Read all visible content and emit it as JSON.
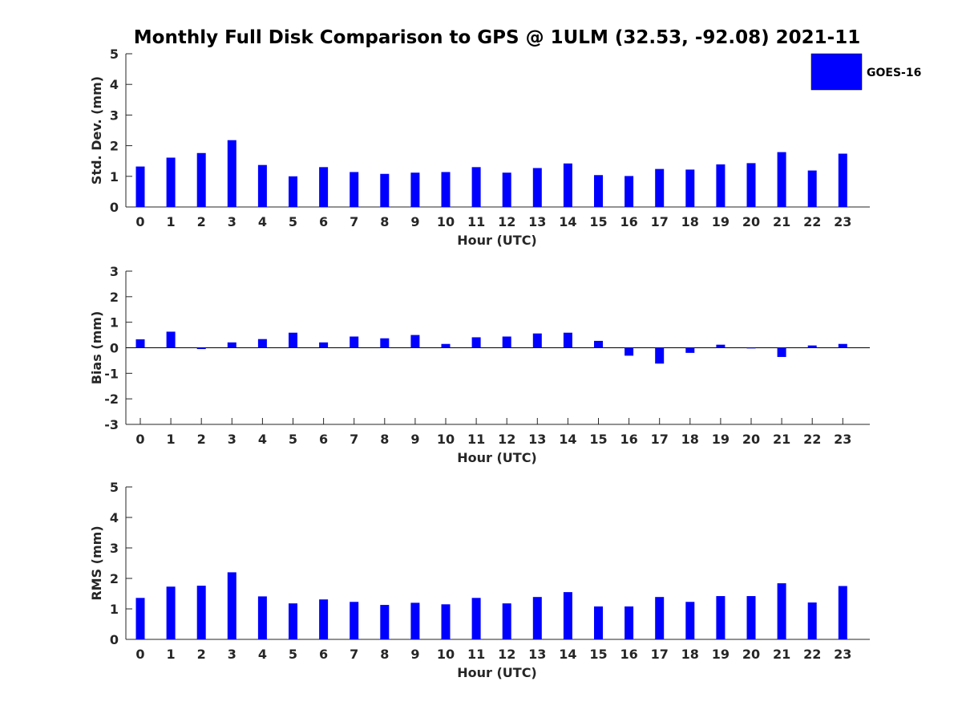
{
  "title": "Monthly Full Disk Comparison to GPS @ 1ULM (32.53, -92.08) 2021-11",
  "colors": {
    "bar": "#0000ff",
    "axis": "#262626"
  },
  "legend": {
    "label": "GOES-16",
    "placement": "top-right"
  },
  "chart_data": [
    {
      "type": "bar",
      "xlabel": "Hour (UTC)",
      "ylabel": "Std. Dev. (mm)",
      "ylim": [
        0,
        5
      ],
      "yticks": [
        0,
        1,
        2,
        3,
        4,
        5
      ],
      "categories": [
        "0",
        "1",
        "2",
        "3",
        "4",
        "5",
        "6",
        "7",
        "8",
        "9",
        "10",
        "11",
        "12",
        "13",
        "14",
        "15",
        "16",
        "17",
        "18",
        "19",
        "20",
        "21",
        "22",
        "23"
      ],
      "series": [
        {
          "name": "GOES-16",
          "values": [
            1.32,
            1.61,
            1.76,
            2.18,
            1.37,
            1.0,
            1.3,
            1.14,
            1.08,
            1.12,
            1.14,
            1.3,
            1.12,
            1.27,
            1.42,
            1.04,
            1.01,
            1.24,
            1.22,
            1.39,
            1.43,
            1.79,
            1.19,
            1.74
          ]
        }
      ]
    },
    {
      "type": "bar",
      "xlabel": "Hour (UTC)",
      "ylabel": "Bias (mm)",
      "ylim": [
        -3,
        3
      ],
      "yticks": [
        -3,
        -2,
        -1,
        0,
        1,
        2,
        3
      ],
      "categories": [
        "0",
        "1",
        "2",
        "3",
        "4",
        "5",
        "6",
        "7",
        "8",
        "9",
        "10",
        "11",
        "12",
        "13",
        "14",
        "15",
        "16",
        "17",
        "18",
        "19",
        "20",
        "21",
        "22",
        "23"
      ],
      "series": [
        {
          "name": "GOES-16",
          "values": [
            0.33,
            0.63,
            -0.05,
            0.21,
            0.34,
            0.59,
            0.21,
            0.44,
            0.37,
            0.5,
            0.15,
            0.41,
            0.44,
            0.56,
            0.59,
            0.27,
            -0.31,
            -0.62,
            -0.2,
            0.12,
            -0.02,
            -0.36,
            0.09,
            0.15
          ]
        }
      ]
    },
    {
      "type": "bar",
      "xlabel": "Hour (UTC)",
      "ylabel": "RMS (mm)",
      "ylim": [
        0,
        5
      ],
      "yticks": [
        0,
        1,
        2,
        3,
        4,
        5
      ],
      "categories": [
        "0",
        "1",
        "2",
        "3",
        "4",
        "5",
        "6",
        "7",
        "8",
        "9",
        "10",
        "11",
        "12",
        "13",
        "14",
        "15",
        "16",
        "17",
        "18",
        "19",
        "20",
        "21",
        "22",
        "23"
      ],
      "series": [
        {
          "name": "GOES-16",
          "values": [
            1.36,
            1.73,
            1.76,
            2.2,
            1.41,
            1.18,
            1.31,
            1.23,
            1.13,
            1.2,
            1.15,
            1.36,
            1.18,
            1.39,
            1.55,
            1.08,
            1.08,
            1.39,
            1.23,
            1.42,
            1.42,
            1.84,
            1.21,
            1.75
          ]
        }
      ]
    }
  ]
}
